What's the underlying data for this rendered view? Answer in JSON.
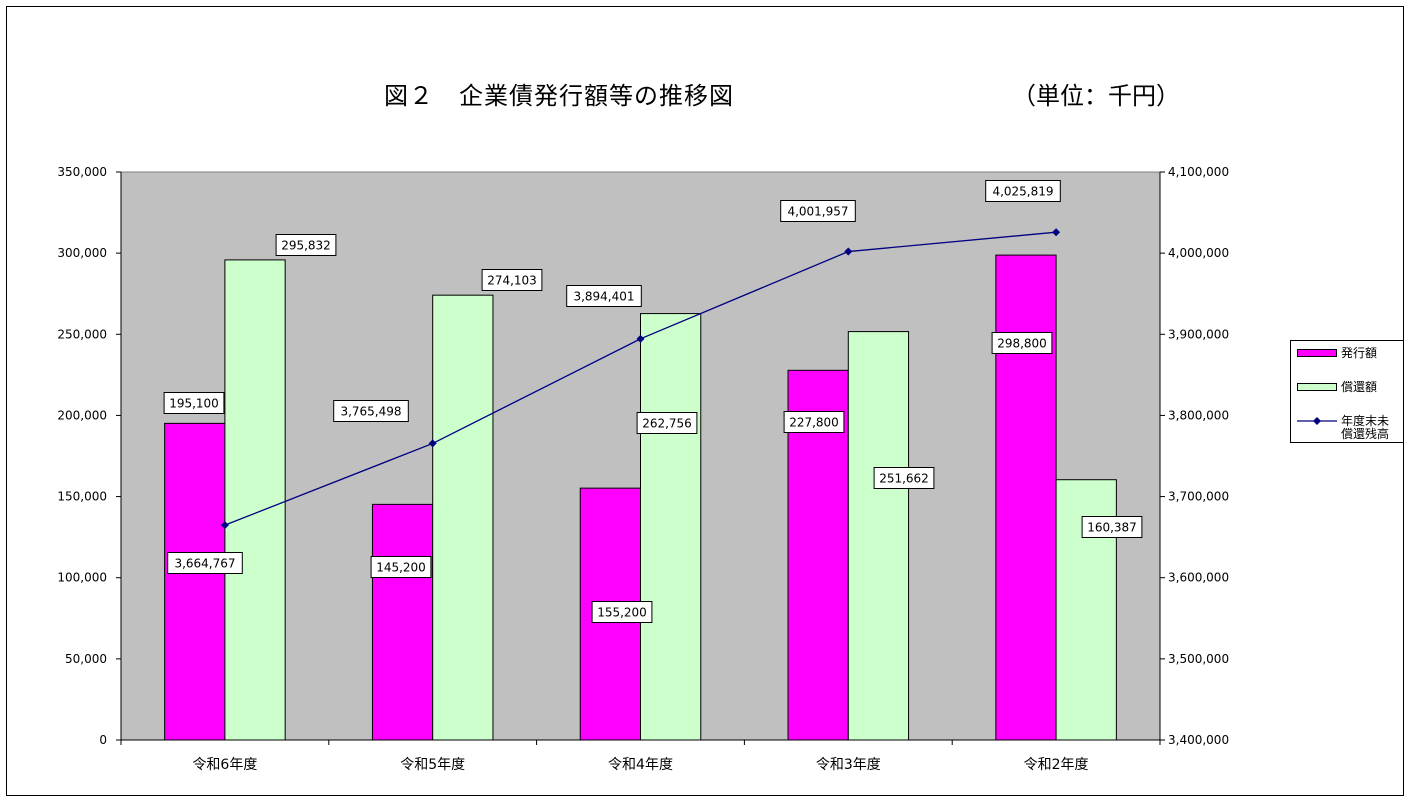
{
  "header": {
    "title": "図２　企業債発行額等の推移図",
    "unit": "（単位：千円）"
  },
  "legend": {
    "items": [
      {
        "label": "発行額"
      },
      {
        "label": "償還額"
      },
      {
        "label_line1": "年度末未",
        "label_line2": "償還残高"
      }
    ]
  },
  "colors": {
    "plot_bg": "#c0c0c0",
    "issue_bar": "#ff00ff",
    "repay_bar": "#ccffcc",
    "line": "#000080"
  },
  "chart_data": {
    "type": "bar",
    "categories": [
      "令和6年度",
      "令和5年度",
      "令和4年度",
      "令和3年度",
      "令和2年度"
    ],
    "series": [
      {
        "name": "発行額",
        "type": "bar",
        "axis": "left",
        "values": [
          195100,
          145200,
          155200,
          227800,
          298800
        ],
        "labels": [
          "195,100",
          "145,200",
          "155,200",
          "227,800",
          "298,800"
        ]
      },
      {
        "name": "償還額",
        "type": "bar",
        "axis": "left",
        "values": [
          295832,
          274103,
          262756,
          251662,
          160387
        ],
        "labels": [
          "295,832",
          "274,103",
          "262,756",
          "251,662",
          "160,387"
        ]
      },
      {
        "name": "年度末未償還残高",
        "type": "line",
        "axis": "right",
        "values": [
          3664767,
          3765498,
          3894401,
          4001957,
          4025819
        ],
        "labels": [
          "3,664,767",
          "3,765,498",
          "3,894,401",
          "4,001,957",
          "4,025,819"
        ]
      }
    ],
    "left_axis": {
      "ylim": [
        0,
        350000
      ],
      "ticks": [
        "0",
        "50,000",
        "100,000",
        "150,000",
        "200,000",
        "250,000",
        "300,000",
        "350,000"
      ]
    },
    "right_axis": {
      "ylim": [
        3400000,
        4100000
      ],
      "ticks": [
        "3,400,000",
        "3,500,000",
        "3,600,000",
        "3,700,000",
        "3,800,000",
        "3,900,000",
        "4,000,000",
        "4,100,000"
      ]
    },
    "grid": false,
    "legend_position": "right"
  }
}
